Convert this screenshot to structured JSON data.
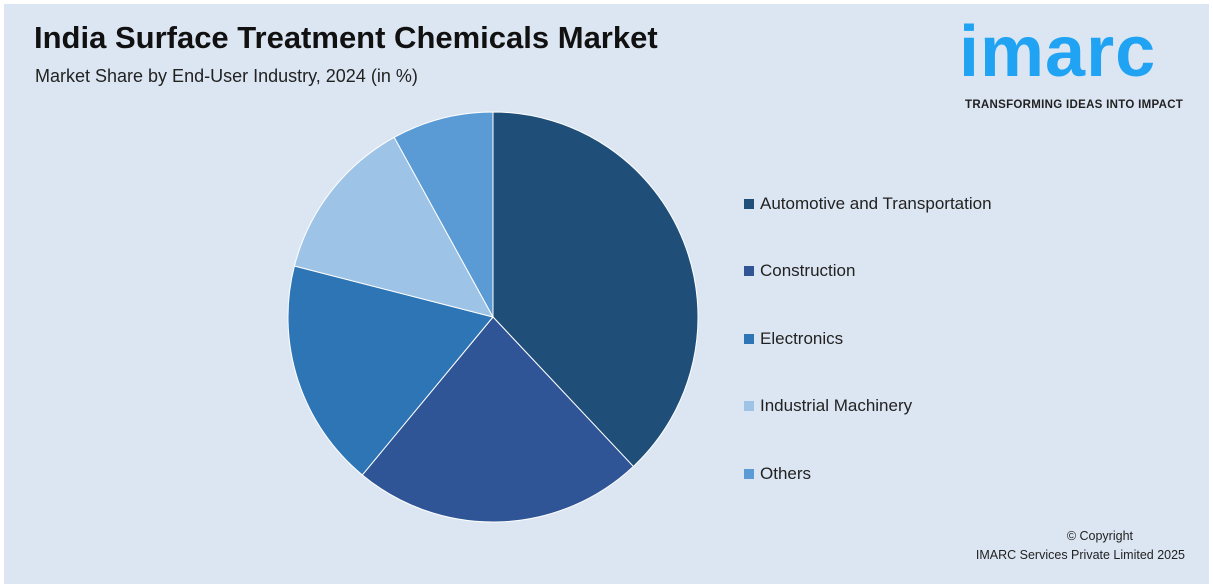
{
  "header": {
    "title": "India Surface Treatment Chemicals Market",
    "subtitle": "Market Share by End-User Industry, 2024 (in %)"
  },
  "logo": {
    "word": "imarc",
    "tagline": "TRANSFORMING IDEAS INTO IMPACT",
    "color": "#1fa3f2"
  },
  "chart_data": {
    "type": "pie",
    "title": "India Surface Treatment Chemicals Market",
    "subtitle": "Market Share by End-User Industry, 2024 (in %)",
    "categories": [
      "Automotive and Transportation",
      "Construction",
      "Electronics",
      "Industrial Machinery",
      "Others"
    ],
    "values": [
      38,
      23,
      18,
      13,
      8
    ],
    "colors": [
      "#1f4e79",
      "#2f5597",
      "#2e75b6",
      "#9dc3e6",
      "#5b9bd5"
    ],
    "legend_position": "right",
    "start": "top-clockwise"
  },
  "footer": {
    "copyright": "© Copyright",
    "company": "IMARC Services Private Limited 2025"
  }
}
